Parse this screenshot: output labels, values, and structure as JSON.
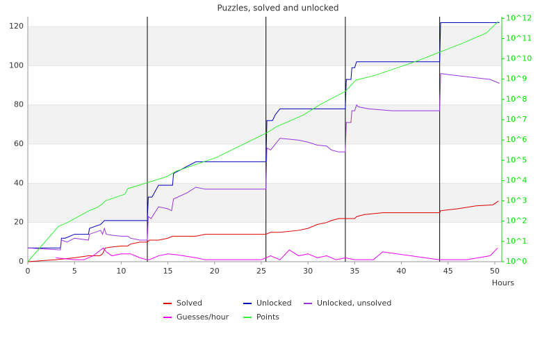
{
  "chart_data": {
    "type": "line",
    "title": "Puzzles, solved and unlocked",
    "x_label": "Hours",
    "xlim": [
      0,
      50.75
    ],
    "xticks": [
      0,
      5,
      10,
      15,
      20,
      25,
      30,
      35,
      40,
      45,
      50
    ],
    "ylim": [
      0,
      125
    ],
    "yticks": [
      0,
      20,
      40,
      60,
      80,
      100,
      120
    ],
    "y2lim": [
      1,
      1200000000000
    ],
    "y2_log": true,
    "y2_color": "#00dd00",
    "y2ticks": [
      {
        "value": 1,
        "label": "10^0"
      },
      {
        "value": 10,
        "label": "10^1"
      },
      {
        "value": 100,
        "label": "10^2"
      },
      {
        "value": 1000,
        "label": "10^3"
      },
      {
        "value": 10000,
        "label": "10^4"
      },
      {
        "value": 100000,
        "label": "10^5"
      },
      {
        "value": 1000000,
        "label": "10^6"
      },
      {
        "value": 10000000,
        "label": "10^7"
      },
      {
        "value": 100000000,
        "label": "10^8"
      },
      {
        "value": 1000000000,
        "label": "10^9"
      },
      {
        "value": 10000000000,
        "label": "10^10"
      },
      {
        "value": 100000000000,
        "label": "10^11"
      },
      {
        "value": 1000000000000,
        "label": "10^12"
      }
    ],
    "grid": "bands",
    "legend": "bottom",
    "vlines": [
      12.8,
      25.5,
      34,
      44.1
    ],
    "series": [
      {
        "name": "Solved",
        "color": "#dd0000",
        "x": [
          0,
          3,
          5,
          6.5,
          7.7,
          8,
          8.3,
          9,
          10,
          10.7,
          11,
          12,
          12.8,
          13,
          14,
          15,
          15.5,
          18,
          19,
          25.5,
          26,
          27,
          29,
          30,
          31,
          32,
          32.5,
          33.3,
          35,
          35.2,
          36,
          38,
          44.1,
          44.2,
          46,
          48,
          49.8,
          50.4
        ],
        "values": [
          0,
          1,
          2,
          3,
          3,
          4,
          7,
          7.5,
          8,
          8,
          9,
          10,
          10,
          11,
          11,
          12,
          13,
          13,
          14,
          14,
          15,
          15,
          16,
          17,
          19,
          20,
          21,
          22,
          22,
          23,
          24,
          25,
          25,
          26,
          27,
          28.5,
          29,
          31
        ]
      },
      {
        "name": "Unlocked",
        "color": "#0000bb",
        "x": [
          0,
          3.5,
          3.6,
          4,
          5,
          6.5,
          6.6,
          7.8,
          8.2,
          12.8,
          12.9,
          13.3,
          14,
          15.5,
          15.6,
          18,
          25.5,
          25.6,
          26.2,
          26.5,
          27,
          34,
          34.1,
          34.6,
          34.7,
          35,
          35.2,
          44.1,
          44.2,
          50.5
        ],
        "values": [
          7,
          7,
          12,
          12,
          14,
          14,
          17,
          19,
          21,
          21,
          33,
          33,
          39,
          39,
          45,
          51,
          51,
          72,
          72,
          75,
          78,
          78,
          93,
          93,
          99,
          99,
          102,
          102,
          122,
          122
        ]
      },
      {
        "name": "Unlocked, unsolved",
        "color": "#9933dd",
        "x": [
          0,
          3.5,
          3.6,
          4.2,
          5,
          6.5,
          6.6,
          7.8,
          8,
          8.2,
          8.4,
          9,
          10,
          10.7,
          11,
          12,
          12.8,
          12.9,
          13.2,
          14,
          15,
          15.4,
          15.6,
          17,
          18,
          19,
          25.5,
          25.6,
          26,
          26.5,
          27,
          29,
          30,
          31,
          32,
          32.5,
          33.3,
          34,
          34.1,
          34.6,
          34.7,
          35,
          35.2,
          35.4,
          36.5,
          39,
          44.1,
          44.2,
          45,
          49.5,
          50.5
        ],
        "values": [
          7,
          6,
          11,
          10,
          12,
          11,
          14,
          16,
          14,
          17,
          14,
          13.5,
          13,
          13,
          12,
          11,
          11,
          23,
          22,
          28,
          27,
          26,
          32,
          35,
          38,
          37,
          37,
          58,
          57,
          60,
          63,
          62,
          61,
          59.5,
          59,
          57,
          56,
          56,
          71,
          71,
          77,
          77,
          80,
          79,
          78,
          77,
          77,
          96,
          95.5,
          93,
          91
        ]
      },
      {
        "name": "Guesses/hour",
        "color": "#ee00ee",
        "x": [
          3,
          5,
          6,
          7,
          7.8,
          8.1,
          8.4,
          9,
          10,
          11,
          12,
          12.8,
          13,
          14,
          15,
          16,
          18,
          19,
          25,
          25.5,
          26,
          27,
          28,
          29,
          30,
          31,
          32,
          33,
          34,
          35,
          37,
          38,
          44,
          47,
          49.5,
          50.3
        ],
        "values": [
          2,
          1,
          1,
          3,
          6,
          7,
          5,
          3,
          4,
          4,
          2,
          1,
          1,
          3,
          4,
          3.5,
          2,
          1,
          1,
          2,
          3,
          1,
          6,
          3,
          4,
          2,
          3,
          1,
          2,
          1,
          1,
          5,
          1,
          1,
          3,
          7
        ]
      },
      {
        "name": "Points",
        "color": "#33ee33",
        "axis": "y2",
        "x": [
          0,
          3.3,
          4.2,
          6.5,
          7.4,
          8,
          8.3,
          10.4,
          10.7,
          12.8,
          14.9,
          15.8,
          20.2,
          25.7,
          26.6,
          29.5,
          31.3,
          34,
          35.1,
          37.2,
          41.7,
          44.2,
          46.5,
          49.1,
          50.4
        ],
        "values": [
          1,
          56,
          83,
          316,
          468,
          708,
          1000,
          2140,
          3980,
          7940,
          15800,
          28200,
          138000,
          2400000,
          4470000,
          17000000,
          56000000,
          250000000,
          890000000,
          1550000000,
          7900000000,
          22400000000,
          57500000000,
          190000000000,
          720000000000
        ]
      }
    ]
  }
}
